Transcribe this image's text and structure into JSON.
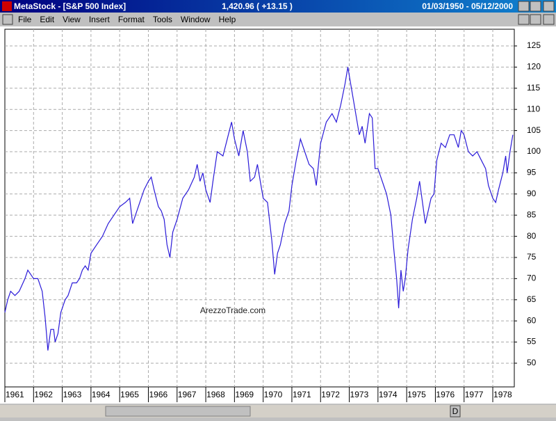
{
  "window": {
    "title": "MetaStock - [S&P 500 Index]",
    "quote": "1,420.96 ( +13.15 )",
    "date_range": "01/03/1950 - 05/12/2000"
  },
  "menu": [
    "File",
    "Edit",
    "View",
    "Insert",
    "Format",
    "Tools",
    "Window",
    "Help"
  ],
  "scrollbar": {
    "period_button": "D"
  },
  "chart_data": {
    "type": "line",
    "annotation": "ArezzoTrade.com",
    "grid": true,
    "x": [
      1961.0,
      1961.1,
      1961.2,
      1961.35,
      1961.5,
      1961.7,
      1961.8,
      1961.9,
      1962.0,
      1962.15,
      1962.3,
      1962.4,
      1962.45,
      1962.5,
      1962.6,
      1962.7,
      1962.75,
      1962.85,
      1962.95,
      1963.1,
      1963.2,
      1963.35,
      1963.5,
      1963.6,
      1963.7,
      1963.8,
      1963.9,
      1964.0,
      1964.2,
      1964.4,
      1964.6,
      1964.8,
      1965.0,
      1965.2,
      1965.35,
      1965.45,
      1965.55,
      1965.7,
      1965.85,
      1966.0,
      1966.1,
      1966.2,
      1966.35,
      1966.45,
      1966.55,
      1966.65,
      1966.75,
      1966.85,
      1967.0,
      1967.2,
      1967.4,
      1967.6,
      1967.7,
      1967.8,
      1967.9,
      1968.0,
      1968.15,
      1968.25,
      1968.4,
      1968.6,
      1968.75,
      1968.9,
      1969.0,
      1969.15,
      1969.3,
      1969.45,
      1969.55,
      1969.7,
      1969.8,
      1969.9,
      1970.0,
      1970.15,
      1970.3,
      1970.4,
      1970.5,
      1970.6,
      1970.75,
      1970.9,
      1971.0,
      1971.15,
      1971.3,
      1971.45,
      1971.6,
      1971.75,
      1971.85,
      1972.0,
      1972.2,
      1972.4,
      1972.55,
      1972.7,
      1972.85,
      1972.95,
      1973.05,
      1973.2,
      1973.35,
      1973.45,
      1973.55,
      1973.7,
      1973.8,
      1973.9,
      1974.0,
      1974.15,
      1974.3,
      1974.45,
      1974.55,
      1974.65,
      1974.72,
      1974.8,
      1974.88,
      1974.95,
      1975.05,
      1975.2,
      1975.35,
      1975.45,
      1975.55,
      1975.65,
      1975.75,
      1975.85,
      1975.95,
      1976.05,
      1976.2,
      1976.35,
      1976.5,
      1976.65,
      1976.8,
      1976.9,
      1977.0,
      1977.15,
      1977.3,
      1977.45,
      1977.6,
      1977.75,
      1977.85,
      1978.0,
      1978.1,
      1978.2,
      1978.35,
      1978.45,
      1978.5,
      1978.6,
      1978.7
    ],
    "series": [
      {
        "color": "#2a1ad8",
        "values": [
          62,
          65,
          67,
          66,
          67,
          70,
          72,
          71,
          70,
          70,
          67,
          61,
          57,
          53,
          58,
          58,
          55,
          57,
          62,
          65,
          66,
          69,
          69,
          70,
          72,
          73,
          72,
          76,
          78,
          80,
          83,
          85,
          87,
          88,
          89,
          83,
          85,
          88,
          91,
          93,
          94,
          91,
          87,
          86,
          84,
          78,
          75,
          81,
          84,
          89,
          91,
          94,
          97,
          93,
          95,
          91,
          88,
          93,
          100,
          99,
          103,
          107,
          103,
          99,
          105,
          100,
          93,
          94,
          97,
          93,
          89,
          88,
          79,
          71,
          76,
          78,
          83,
          86,
          92,
          98,
          103,
          100,
          97,
          96,
          92,
          102,
          107,
          109,
          107,
          111,
          116,
          120,
          116,
          110,
          104,
          106,
          102,
          109,
          108,
          96,
          96,
          93,
          90,
          85,
          77,
          70,
          63,
          72,
          67,
          70,
          77,
          84,
          89,
          93,
          88,
          83,
          86,
          89,
          90,
          98,
          102,
          101,
          104,
          104,
          101,
          105,
          104,
          100,
          99,
          100,
          98,
          96,
          92,
          89,
          88,
          91,
          95,
          99,
          95,
          100,
          104
        ]
      }
    ],
    "xlim": [
      1961.0,
      1978.75
    ],
    "xticks": [
      1961,
      1962,
      1963,
      1964,
      1965,
      1966,
      1967,
      1968,
      1969,
      1970,
      1971,
      1972,
      1973,
      1974,
      1975,
      1976,
      1977,
      1978
    ],
    "ylim": [
      44.4,
      128.95
    ],
    "yticks": [
      50,
      55,
      60,
      65,
      70,
      75,
      80,
      85,
      90,
      95,
      100,
      105,
      110,
      115,
      120,
      125
    ]
  }
}
